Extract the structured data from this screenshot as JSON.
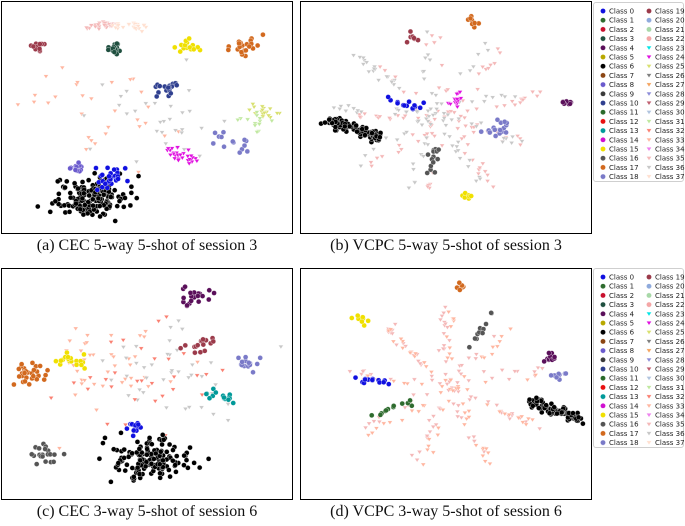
{
  "chart_data": [
    {
      "type": "scatter",
      "id": "a",
      "title": "(a) CEC 5-way 5-shot of session 3",
      "xlabel": "",
      "ylabel": "",
      "axes": "hidden",
      "grid": false,
      "legend": "none",
      "series": [
        {
          "name": "Class 6",
          "cluster": "dense blob",
          "center": [
            -0.45,
            -0.78
          ],
          "approx_points": 160
        },
        {
          "name": "Class 0",
          "cluster": "blob",
          "center": [
            -0.28,
            -0.58
          ],
          "approx_points": 30
        },
        {
          "name": "Class 8",
          "cluster": "small blob",
          "center": [
            -0.55,
            -0.48
          ],
          "approx_points": 12
        },
        {
          "name": "Class 19",
          "cluster": "small blob",
          "center": [
            -0.82,
            0.7
          ],
          "approx_points": 12
        },
        {
          "name": "Class 3",
          "cluster": "small blob",
          "center": [
            -0.25,
            0.68
          ],
          "approx_points": 18
        },
        {
          "name": "Class 17",
          "cluster": "blob",
          "center": [
            0.75,
            0.7
          ],
          "approx_points": 22
        },
        {
          "name": "Class 15",
          "cluster": "blob",
          "center": [
            0.3,
            0.72
          ],
          "approx_points": 16
        },
        {
          "name": "Class 35",
          "cluster": "arc",
          "center": [
            -0.35,
            0.92
          ],
          "approx_points": 30
        },
        {
          "name": "Class 37",
          "cluster": "arc",
          "center": [
            -0.15,
            0.92
          ],
          "approx_points": 25
        },
        {
          "name": "Class 25",
          "cluster": "elongated",
          "center": [
            0.88,
            0.05
          ],
          "approx_points": 20
        },
        {
          "name": "Class 24",
          "cluster": "elongated",
          "center": [
            0.25,
            -0.35
          ],
          "approx_points": 30
        },
        {
          "name": "Class 31",
          "cluster": "blob",
          "center": [
            0.8,
            -0.02
          ],
          "approx_points": 14
        },
        {
          "name": "Class 18",
          "cluster": "blob",
          "center": [
            0.65,
            -0.25
          ],
          "approx_points": 14
        },
        {
          "name": "Class 10",
          "cluster": "blob",
          "center": [
            0.15,
            0.28
          ],
          "approx_points": 18
        },
        {
          "name": "Class 33",
          "cluster": "scattered",
          "center": [
            -0.35,
            0.1
          ],
          "approx_points": 30
        },
        {
          "name": "Class 36",
          "cluster": "scattered",
          "center": [
            0.05,
            0.05
          ],
          "approx_points": 30
        }
      ]
    },
    {
      "type": "scatter",
      "id": "b",
      "title": "(b) VCPC 5-way 5-shot of session 3",
      "xlabel": "",
      "ylabel": "",
      "axes": "hidden",
      "grid": false,
      "legend": "right",
      "series": [
        {
          "name": "Class 6",
          "cluster": "elongated ray",
          "center": [
            -0.7,
            -0.1
          ],
          "approx_points": 120
        },
        {
          "name": "Class 4",
          "cluster": "small blob",
          "center": [
            0.9,
            0.15
          ],
          "approx_points": 8
        },
        {
          "name": "Class 17",
          "cluster": "small blob",
          "center": [
            0.2,
            0.95
          ],
          "approx_points": 8
        },
        {
          "name": "Class 19",
          "cluster": "small blob",
          "center": [
            -0.25,
            0.8
          ],
          "approx_points": 8
        },
        {
          "name": "Class 15",
          "cluster": "small blob",
          "center": [
            0.15,
            -0.75
          ],
          "approx_points": 8
        },
        {
          "name": "Class 16",
          "cluster": "ray",
          "center": [
            -0.15,
            -0.55
          ],
          "approx_points": 14
        },
        {
          "name": "Class 18",
          "cluster": "blob",
          "center": [
            0.4,
            -0.1
          ],
          "approx_points": 18
        },
        {
          "name": "Class 0",
          "cluster": "ray",
          "center": [
            -0.45,
            0.2
          ],
          "approx_points": 14
        },
        {
          "name": "Class 24",
          "cluster": "ray",
          "center": [
            0.1,
            0.25
          ],
          "approx_points": 20
        },
        {
          "name": "Class 35",
          "cluster": "star arms",
          "center": [
            0.0,
            0.0
          ],
          "approx_points": 120
        },
        {
          "name": "Class 36",
          "cluster": "star arms",
          "center": [
            -0.1,
            0.05
          ],
          "approx_points": 120
        }
      ]
    },
    {
      "type": "scatter",
      "id": "c",
      "title": "(c) CEC 3-way 5-shot of session 6",
      "xlabel": "",
      "ylabel": "",
      "axes": "hidden",
      "grid": false,
      "legend": "none",
      "series": [
        {
          "name": "Class 6",
          "cluster": "dense blob",
          "center": [
            0.02,
            -0.72
          ],
          "approx_points": 150
        },
        {
          "name": "Class 4",
          "cluster": "blob",
          "center": [
            0.35,
            0.88
          ],
          "approx_points": 20
        },
        {
          "name": "Class 17",
          "cluster": "blob",
          "center": [
            -0.9,
            0.1
          ],
          "approx_points": 30
        },
        {
          "name": "Class 15",
          "cluster": "blob",
          "center": [
            -0.58,
            0.25
          ],
          "approx_points": 18
        },
        {
          "name": "Class 16",
          "cluster": "blob",
          "center": [
            -0.78,
            -0.68
          ],
          "approx_points": 20
        },
        {
          "name": "Class 18",
          "cluster": "blob",
          "center": [
            0.75,
            0.2
          ],
          "approx_points": 14
        },
        {
          "name": "Class 19",
          "cluster": "blob",
          "center": [
            0.4,
            0.4
          ],
          "approx_points": 16
        },
        {
          "name": "Class 13",
          "cluster": "elongated",
          "center": [
            0.55,
            -0.1
          ],
          "approx_points": 16
        },
        {
          "name": "Class 0",
          "cluster": "small blob",
          "center": [
            -0.1,
            -0.4
          ],
          "approx_points": 14
        },
        {
          "name": "Class 33",
          "cluster": "scattered",
          "center": [
            -0.25,
            0.25
          ],
          "approx_points": 40
        },
        {
          "name": "Class 36",
          "cluster": "scattered",
          "center": [
            0.15,
            0.1
          ],
          "approx_points": 40
        },
        {
          "name": "Class 32",
          "cluster": "scattered",
          "center": [
            -0.05,
            0.05
          ],
          "approx_points": 30
        }
      ]
    },
    {
      "type": "scatter",
      "id": "d",
      "title": "(d) VCPC 3-way 5-shot of session 6",
      "xlabel": "",
      "ylabel": "",
      "axes": "hidden",
      "grid": false,
      "legend": "right",
      "series": [
        {
          "name": "Class 6",
          "cluster": "elongated ray",
          "center": [
            0.82,
            -0.25
          ],
          "approx_points": 90
        },
        {
          "name": "Class 17",
          "cluster": "small blob",
          "center": [
            0.1,
            0.95
          ],
          "approx_points": 8
        },
        {
          "name": "Class 15",
          "cluster": "small blob",
          "center": [
            -0.65,
            0.65
          ],
          "approx_points": 8
        },
        {
          "name": "Class 4",
          "cluster": "small blob",
          "center": [
            0.78,
            0.25
          ],
          "approx_points": 10
        },
        {
          "name": "Class 18",
          "cluster": "small blob",
          "center": [
            0.85,
            0.1
          ],
          "approx_points": 8
        },
        {
          "name": "Class 0",
          "cluster": "ray",
          "center": [
            -0.75,
            0.05
          ],
          "approx_points": 14
        },
        {
          "name": "Class 1",
          "cluster": "ray",
          "center": [
            -0.55,
            -0.3
          ],
          "approx_points": 12
        },
        {
          "name": "Class 16",
          "cluster": "ray",
          "center": [
            0.35,
            0.7
          ],
          "approx_points": 12
        },
        {
          "name": "Class 35",
          "cluster": "star arms",
          "center": [
            0.0,
            0.0
          ],
          "approx_points": 120
        },
        {
          "name": "Class 33",
          "cluster": "star arms",
          "center": [
            0.05,
            -0.05
          ],
          "approx_points": 100
        }
      ]
    }
  ],
  "legend": {
    "entries": [
      {
        "label": "Class 0",
        "color": "#1010e0",
        "marker": "circle"
      },
      {
        "label": "Class 1",
        "color": "#2e6b2e",
        "marker": "circle"
      },
      {
        "label": "Class 2",
        "color": "#c8102e",
        "marker": "circle"
      },
      {
        "label": "Class 3",
        "color": "#1f4f3f",
        "marker": "circle"
      },
      {
        "label": "Class 4",
        "color": "#5a0f5a",
        "marker": "circle"
      },
      {
        "label": "Class 5",
        "color": "#b8a800",
        "marker": "circle"
      },
      {
        "label": "Class 6",
        "color": "#000000",
        "marker": "circle"
      },
      {
        "label": "Class 7",
        "color": "#8b4513",
        "marker": "circle"
      },
      {
        "label": "Class 8",
        "color": "#6a5acd",
        "marker": "circle"
      },
      {
        "label": "Class 9",
        "color": "#3a3a3a",
        "marker": "circle"
      },
      {
        "label": "Class 10",
        "color": "#2f3f8f",
        "marker": "circle"
      },
      {
        "label": "Class 11",
        "color": "#2a6a2a",
        "marker": "circle"
      },
      {
        "label": "Class 12",
        "color": "#e81010",
        "marker": "circle"
      },
      {
        "label": "Class 13",
        "color": "#009999",
        "marker": "circle"
      },
      {
        "label": "Class 14",
        "color": "#d010d0",
        "marker": "circle"
      },
      {
        "label": "Class 15",
        "color": "#f0e000",
        "marker": "circle"
      },
      {
        "label": "Class 16",
        "color": "#555555",
        "marker": "circle"
      },
      {
        "label": "Class 17",
        "color": "#d2691e",
        "marker": "circle"
      },
      {
        "label": "Class 18",
        "color": "#7a7ac8",
        "marker": "circle"
      },
      {
        "label": "Class 19",
        "color": "#9b3a4a",
        "marker": "circle"
      },
      {
        "label": "Class 20",
        "color": "#8faadc",
        "marker": "circle"
      },
      {
        "label": "Class 21",
        "color": "#a8d8a8",
        "marker": "circle"
      },
      {
        "label": "Class 22",
        "color": "#f4a6a6",
        "marker": "circle"
      },
      {
        "label": "Class 23",
        "color": "#00e5e5",
        "marker": "triangle-down"
      },
      {
        "label": "Class 24",
        "color": "#e010e0",
        "marker": "triangle-down"
      },
      {
        "label": "Class 25",
        "color": "#d8e070",
        "marker": "triangle-down"
      },
      {
        "label": "Class 26",
        "color": "#808080",
        "marker": "triangle-down"
      },
      {
        "label": "Class 27",
        "color": "#f4a460",
        "marker": "triangle-down"
      },
      {
        "label": "Class 28",
        "color": "#8c8cd8",
        "marker": "triangle-down"
      },
      {
        "label": "Class 29",
        "color": "#c06070",
        "marker": "triangle-down"
      },
      {
        "label": "Class 30",
        "color": "#b0c4de",
        "marker": "triangle-down"
      },
      {
        "label": "Class 31",
        "color": "#c0e8a0",
        "marker": "triangle-down"
      },
      {
        "label": "Class 32",
        "color": "#fa8072",
        "marker": "triangle-down"
      },
      {
        "label": "Class 33",
        "color": "#ffb6a0",
        "marker": "triangle-down"
      },
      {
        "label": "Class 34",
        "color": "#ee82ee",
        "marker": "triangle-down"
      },
      {
        "label": "Class 35",
        "color": "#f4b8b8",
        "marker": "triangle-down"
      },
      {
        "label": "Class 36",
        "color": "#c8c8c8",
        "marker": "triangle-down"
      },
      {
        "label": "Class 37",
        "color": "#ffe0d0",
        "marker": "triangle-down"
      }
    ]
  }
}
